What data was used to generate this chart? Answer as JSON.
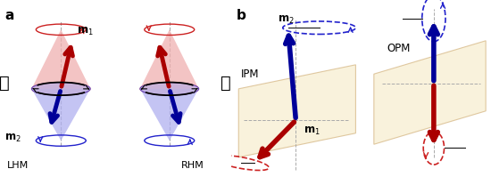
{
  "red_cone_color": "#f0b0b0",
  "blue_cone_color": "#b0b0f0",
  "red_dark": "#aa0000",
  "blue_dark": "#000099",
  "red_med": "#cc2222",
  "blue_med": "#2222cc",
  "plane_color": "#f5e8c0",
  "plane_edge": "#c8a060",
  "dash_color": "#aaaaaa",
  "black": "#111111",
  "bg": "#ffffff",
  "lhm": "LHM",
  "rhm": "RHM",
  "ipm": "IPM",
  "opm": "OPM"
}
